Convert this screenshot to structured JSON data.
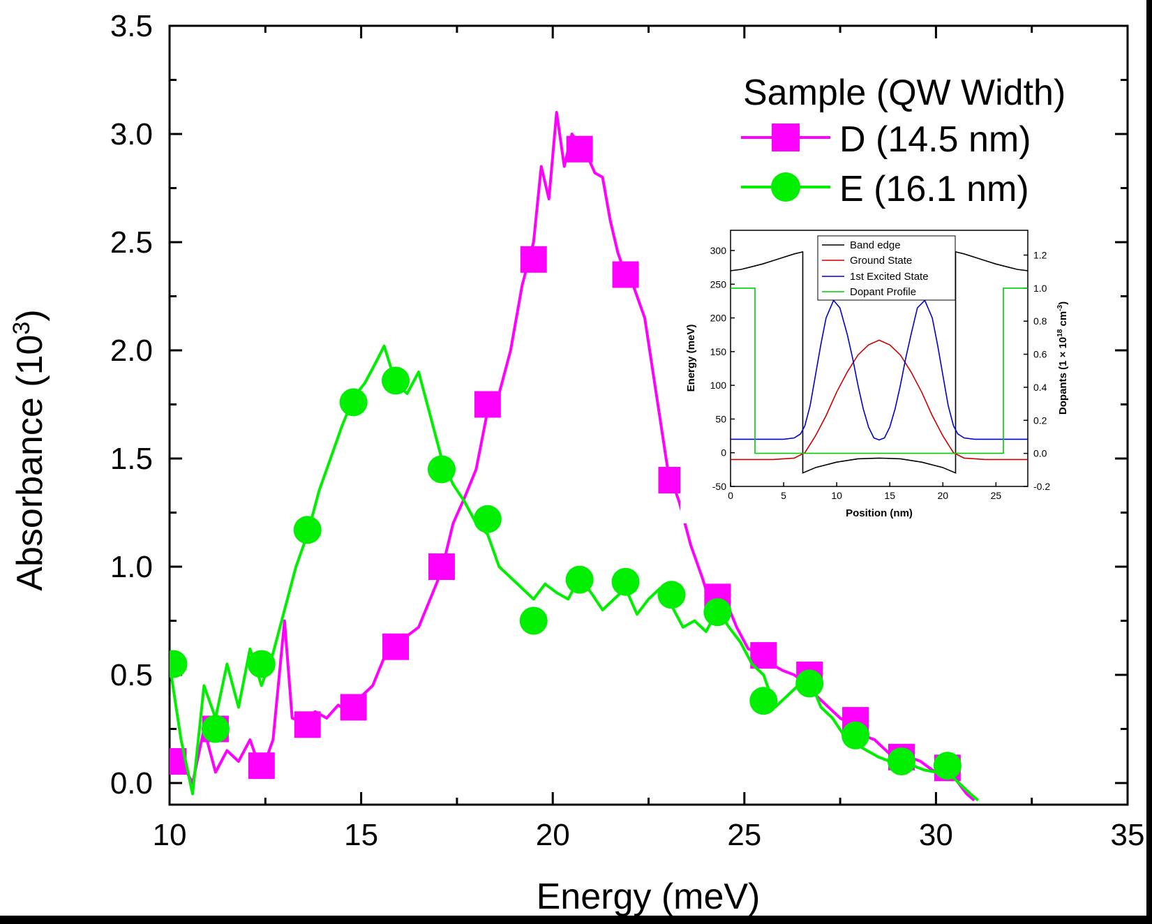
{
  "chart_data": [
    {
      "type": "line",
      "title": "",
      "xlabel": "Energy (meV)",
      "ylabel_main": "Absorbance (10",
      "ylabel_sup": "3",
      "ylabel_close": ")",
      "xlim": [
        10,
        35
      ],
      "ylim": [
        -0.1,
        3.5
      ],
      "xticks": [
        "10",
        "15",
        "20",
        "25",
        "30",
        "35"
      ],
      "yticks": [
        "0.0",
        "0.5",
        "1.0",
        "1.5",
        "2.0",
        "2.5",
        "3.0",
        "3.5"
      ],
      "legend": {
        "title": "Sample (QW Width)",
        "position": "top-right"
      },
      "series": [
        {
          "name": "D (14.5 nm)",
          "color": "#ff00ff",
          "marker": "square",
          "x": [
            10.0,
            10.3,
            10.6,
            10.9,
            11.2,
            11.5,
            11.8,
            12.1,
            12.4,
            12.7,
            13.0,
            13.2,
            13.5,
            13.8,
            14.1,
            14.4,
            14.7,
            15.0,
            15.3,
            15.6,
            15.9,
            16.2,
            16.5,
            16.8,
            17.1,
            17.4,
            17.7,
            18.0,
            18.3,
            18.6,
            18.9,
            19.2,
            19.5,
            19.7,
            19.9,
            20.1,
            20.3,
            20.5,
            20.7,
            20.9,
            21.1,
            21.3,
            21.5,
            21.7,
            21.9,
            22.1,
            22.4,
            22.7,
            23.0,
            23.3,
            23.6,
            23.9,
            24.2,
            24.5,
            24.8,
            25.1,
            25.4,
            25.7,
            26.0,
            26.3,
            26.6,
            26.9,
            27.2,
            27.5,
            27.8,
            28.1,
            28.4,
            28.7,
            29.0,
            29.3,
            29.6,
            29.9,
            30.2,
            30.5,
            30.8,
            31.0
          ],
          "y": [
            0.05,
            0.1,
            0.0,
            0.25,
            0.05,
            0.15,
            0.1,
            0.2,
            0.05,
            0.2,
            0.75,
            0.3,
            0.28,
            0.33,
            0.3,
            0.36,
            0.33,
            0.4,
            0.45,
            0.58,
            0.62,
            0.68,
            0.72,
            0.85,
            0.98,
            1.2,
            1.32,
            1.45,
            1.72,
            1.8,
            2.0,
            2.3,
            2.5,
            2.85,
            2.7,
            3.1,
            2.85,
            3.0,
            2.95,
            2.9,
            2.82,
            2.8,
            2.6,
            2.45,
            2.35,
            2.3,
            2.15,
            1.8,
            1.45,
            1.3,
            1.1,
            0.95,
            0.78,
            0.85,
            0.72,
            0.62,
            0.6,
            0.55,
            0.52,
            0.5,
            0.46,
            0.4,
            0.35,
            0.3,
            0.27,
            0.22,
            0.2,
            0.15,
            0.1,
            0.12,
            0.1,
            0.06,
            0.04,
            0.02,
            -0.05,
            -0.08
          ],
          "marker_x": [
            10.1,
            11.2,
            12.4,
            13.6,
            14.8,
            15.9,
            17.1,
            18.3,
            19.5,
            20.7,
            21.9,
            23.1,
            24.3,
            25.5,
            26.7,
            27.9,
            29.1,
            30.3
          ],
          "marker_y": [
            0.1,
            0.25,
            0.08,
            0.27,
            0.35,
            0.63,
            1.0,
            1.75,
            2.42,
            2.93,
            2.35,
            1.4,
            0.86,
            0.59,
            0.5,
            0.29,
            0.12,
            0.07
          ]
        },
        {
          "name": "E (16.1 nm)",
          "color": "#00ee00",
          "marker": "circle",
          "x": [
            10.0,
            10.3,
            10.6,
            10.9,
            11.2,
            11.5,
            11.8,
            12.1,
            12.4,
            12.7,
            13.0,
            13.3,
            13.6,
            13.9,
            14.2,
            14.5,
            14.8,
            15.1,
            15.4,
            15.6,
            15.9,
            16.2,
            16.5,
            16.8,
            17.1,
            17.4,
            17.7,
            18.0,
            18.3,
            18.6,
            18.9,
            19.2,
            19.5,
            19.8,
            20.1,
            20.4,
            20.7,
            21.0,
            21.3,
            21.6,
            21.9,
            22.2,
            22.5,
            22.8,
            23.1,
            23.4,
            23.7,
            24.0,
            24.3,
            24.6,
            24.9,
            25.2,
            25.5,
            25.8,
            26.1,
            26.4,
            26.7,
            27.0,
            27.3,
            27.6,
            27.9,
            28.2,
            28.5,
            28.8,
            29.1,
            29.4,
            29.7,
            30.0,
            30.3,
            30.6,
            30.9,
            31.1
          ],
          "y": [
            0.55,
            0.2,
            -0.05,
            0.45,
            0.3,
            0.55,
            0.35,
            0.62,
            0.45,
            0.6,
            0.8,
            1.0,
            1.15,
            1.35,
            1.5,
            1.65,
            1.78,
            1.85,
            1.95,
            2.02,
            1.85,
            1.8,
            1.9,
            1.7,
            1.5,
            1.38,
            1.3,
            1.2,
            1.15,
            1.0,
            0.95,
            0.9,
            0.85,
            0.92,
            0.88,
            0.85,
            0.95,
            0.88,
            0.8,
            0.85,
            0.9,
            0.78,
            0.85,
            0.9,
            0.82,
            0.72,
            0.75,
            0.7,
            0.8,
            0.72,
            0.65,
            0.55,
            0.5,
            0.35,
            0.4,
            0.45,
            0.48,
            0.35,
            0.3,
            0.22,
            0.18,
            0.15,
            0.12,
            0.1,
            0.1,
            0.08,
            0.06,
            0.05,
            0.05,
            0.0,
            -0.05,
            -0.08
          ],
          "marker_x": [
            10.1,
            11.2,
            12.4,
            13.6,
            14.8,
            15.9,
            17.1,
            18.3,
            19.5,
            20.7,
            21.9,
            23.1,
            24.3,
            25.5,
            26.7,
            27.9,
            29.1,
            30.3
          ],
          "marker_y": [
            0.55,
            0.25,
            0.55,
            1.17,
            1.76,
            1.86,
            1.45,
            1.22,
            0.75,
            0.94,
            0.93,
            0.87,
            0.79,
            0.38,
            0.46,
            0.22,
            0.1,
            0.08
          ]
        }
      ]
    },
    {
      "type": "line",
      "title": "",
      "xlabel": "Position (nm)",
      "ylabel": "Energy (meV)",
      "y2label_main": "Dopants (1 × 10",
      "y2label_sup": "18",
      "y2label_mid": " cm",
      "y2label_sup2": "-3",
      "y2label_close": ")",
      "xlim": [
        0,
        28
      ],
      "ylim": [
        -50,
        330
      ],
      "y2lim": [
        -0.2,
        1.35
      ],
      "xticks": [
        "0",
        "5",
        "10",
        "15",
        "20",
        "25"
      ],
      "yticks": [
        "-50",
        "0",
        "50",
        "100",
        "150",
        "200",
        "250",
        "300"
      ],
      "y2ticks": [
        "-0.2",
        "0.0",
        "0.2",
        "0.4",
        "0.6",
        "0.8",
        "1.0",
        "1.2"
      ],
      "legend": {
        "position": "top-center"
      },
      "series": [
        {
          "name": "Band edge",
          "color": "#000000",
          "x": [
            0,
            1,
            2,
            3,
            4,
            5,
            6,
            6.8,
            6.8,
            8,
            10,
            12,
            14,
            16,
            18,
            20,
            21.2,
            21.2,
            22,
            23,
            24,
            25,
            26,
            27,
            28
          ],
          "y": [
            270,
            272,
            276,
            280,
            285,
            290,
            295,
            298,
            -30,
            -22,
            -14,
            -9,
            -8,
            -9,
            -14,
            -22,
            -30,
            298,
            295,
            290,
            285,
            280,
            276,
            272,
            270
          ]
        },
        {
          "name": "Ground State",
          "color": "#cc0000",
          "x": [
            0,
            4,
            6,
            7,
            8,
            9,
            10,
            11,
            12,
            13,
            14,
            15,
            16,
            17,
            18,
            19,
            20,
            21,
            22,
            24,
            28
          ],
          "y": [
            -10,
            -10,
            -8,
            0,
            25,
            55,
            90,
            120,
            145,
            160,
            167,
            160,
            145,
            120,
            90,
            55,
            25,
            0,
            -8,
            -10,
            -10
          ],
          "y_axis": "left"
        },
        {
          "name": "1st Excited State",
          "color": "#0000cc",
          "x": [
            0,
            5,
            6,
            6.6,
            7,
            7.5,
            8,
            8.5,
            9,
            9.7,
            10.3,
            11,
            11.5,
            12,
            12.5,
            13,
            13.5,
            14,
            14.5,
            15,
            15.5,
            16,
            16.5,
            17,
            17.6,
            18.3,
            19,
            19.5,
            20,
            20.5,
            21,
            21.4,
            22,
            23,
            28
          ],
          "y": [
            20,
            20,
            22,
            28,
            40,
            70,
            115,
            160,
            200,
            226,
            215,
            175,
            140,
            100,
            65,
            38,
            22,
            19,
            22,
            38,
            65,
            100,
            140,
            175,
            215,
            226,
            200,
            160,
            115,
            70,
            40,
            28,
            22,
            20,
            20
          ],
          "y_axis": "left"
        },
        {
          "name": "Dopant Profile",
          "color": "#00cc00",
          "x": [
            0,
            2.3,
            2.3,
            25.7,
            25.7,
            28
          ],
          "y": [
            1.0,
            1.0,
            0.0,
            0.0,
            1.0,
            1.0
          ],
          "y_axis": "right"
        }
      ]
    }
  ]
}
